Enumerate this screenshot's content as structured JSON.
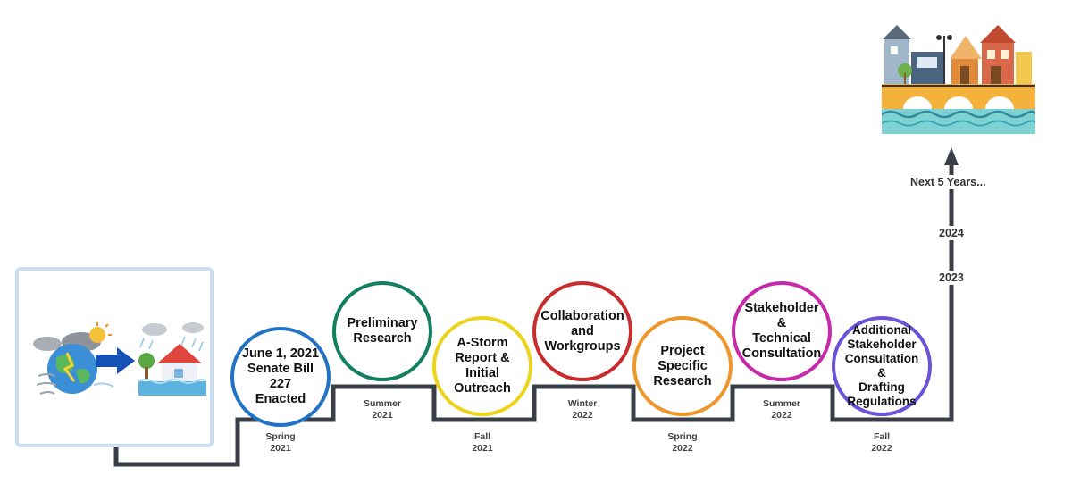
{
  "stages": [
    {
      "id": "s1",
      "text": "June 1,  2021\nSenate Bill 227\nEnacted",
      "season": "Spring\n2021",
      "color": "#2273c4"
    },
    {
      "id": "s2",
      "text": "Preliminary\nResearch",
      "season": "Summer\n2021",
      "color": "#128060"
    },
    {
      "id": "s3",
      "text": "A-Storm\nReport & Initial\nOutreach",
      "season": "Fall\n2021",
      "color": "#ecd31c"
    },
    {
      "id": "s4",
      "text": "Collaboration\nand\nWorkgroups",
      "season": "Winter\n2022",
      "color": "#c92c2c"
    },
    {
      "id": "s5",
      "text": "Project\nSpecific\nResearch",
      "season": "Spring\n2022",
      "color": "#ef962a"
    },
    {
      "id": "s6",
      "text": "Stakeholder &\nTechnical\nConsultation",
      "season": "Summer\n2022",
      "color": "#c72aa9"
    },
    {
      "id": "s7",
      "text": "Additional\nStakeholder\nConsultation &\nDrafting\nRegulations",
      "season": "Fall\n2022",
      "color": "#6c52d6"
    }
  ],
  "vertical_labels": {
    "y2023": "2023",
    "y2024": "2024",
    "next": "Next 5 Years..."
  },
  "colors": {
    "timeline": "#3a3f47",
    "arrow_blue": "#1552b8",
    "frame": "#c9def4"
  },
  "icons": {
    "left": "climate-storm-to-flooded-house-icon",
    "right": "resilient-town-on-bridge-icon"
  }
}
